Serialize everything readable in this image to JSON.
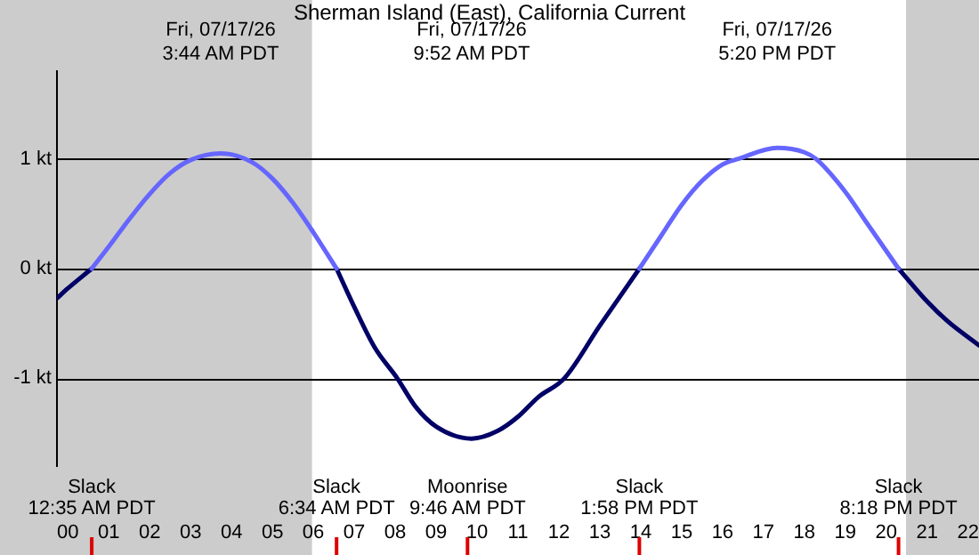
{
  "chart_data": {
    "type": "line",
    "title": "Sherman Island (East), California Current",
    "x": [
      "--07-16T23:44",
      "--07-17T00:00",
      "--07-17T00:35",
      "--07-17T01:00",
      "--07-17T01:30",
      "--07-17T02:00",
      "--07-17T02:30",
      "--07-17T03:00",
      "--07-17T03:44",
      "--07-17T04:30",
      "--07-17T05:00",
      "--07-17T05:30",
      "--07-17T06:00",
      "--07-17T06:34",
      "--07-17T07:00",
      "--07-17T07:30",
      "--07-17T08:03",
      "--07-17T08:30",
      "--07-17T09:00",
      "--07-17T09:52",
      "--07-17T10:30",
      "--07-17T11:00",
      "--07-17T11:30",
      "--07-17T12:08",
      "--07-17T13:00",
      "--07-17T13:58",
      "--07-17T14:30",
      "--07-17T15:00",
      "--07-17T15:30",
      "--07-17T16:00",
      "--07-17T16:23",
      "--07-17T17:20",
      "--07-17T18:00",
      "--07-17T18:17",
      "--07-17T19:00",
      "--07-17T19:30",
      "--07-17T20:18",
      "--07-17T21:00",
      "--07-17T21:30",
      "--07-17T22:16"
    ],
    "series": [
      {
        "color": "#6666ff",
        "values": [
          null,
          null,
          0,
          0.2,
          0.45,
          0.68,
          0.87,
          0.99,
          1.05,
          0.97,
          0.82,
          0.6,
          0.33,
          0,
          null,
          null,
          null,
          null,
          null,
          null,
          null,
          null,
          null,
          null,
          null,
          0,
          0.3,
          0.58,
          0.8,
          0.95,
          1.0,
          1.1,
          1.06,
          1.0,
          0.7,
          0.43,
          0,
          null,
          null,
          null
        ]
      },
      {
        "color": "#000066",
        "values": [
          -0.27,
          -0.18,
          0,
          null,
          null,
          null,
          null,
          null,
          null,
          null,
          null,
          null,
          null,
          0,
          -0.35,
          -0.72,
          -1.0,
          -1.26,
          -1.44,
          -1.55,
          -1.48,
          -1.35,
          -1.17,
          -1.0,
          -0.52,
          0,
          null,
          null,
          null,
          null,
          null,
          null,
          null,
          null,
          null,
          null,
          0,
          -0.3,
          -0.48,
          -0.7
        ]
      }
    ],
    "xlim": [
      "--07-16T23:44",
      "--07-17T22:16"
    ],
    "xticks": [
      {
        "value": "--07-17T00:00",
        "label": "00"
      },
      {
        "value": "--07-17T01:00",
        "label": "01"
      },
      {
        "value": "--07-17T02:00",
        "label": "02"
      },
      {
        "value": "--07-17T03:00",
        "label": "03"
      },
      {
        "value": "--07-17T04:00",
        "label": "04"
      },
      {
        "value": "--07-17T05:00",
        "label": "05"
      },
      {
        "value": "--07-17T06:00",
        "label": "06"
      },
      {
        "value": "--07-17T07:00",
        "label": "07"
      },
      {
        "value": "--07-17T08:00",
        "label": "08"
      },
      {
        "value": "--07-17T09:00",
        "label": "09"
      },
      {
        "value": "--07-17T10:00",
        "label": "10"
      },
      {
        "value": "--07-17T11:00",
        "label": "11"
      },
      {
        "value": "--07-17T12:00",
        "label": "12"
      },
      {
        "value": "--07-17T13:00",
        "label": "13"
      },
      {
        "value": "--07-17T14:00",
        "label": "14"
      },
      {
        "value": "--07-17T15:00",
        "label": "15"
      },
      {
        "value": "--07-17T16:00",
        "label": "16"
      },
      {
        "value": "--07-17T17:00",
        "label": "17"
      },
      {
        "value": "--07-17T18:00",
        "label": "18"
      },
      {
        "value": "--07-17T19:00",
        "label": "19"
      },
      {
        "value": "--07-17T20:00",
        "label": "20"
      },
      {
        "value": "--07-17T21:00",
        "label": "21"
      },
      {
        "value": "--07-17T22:00",
        "label": "22"
      }
    ],
    "x2lim": [
      "--07-16T23:44",
      "--07-17T22:16"
    ],
    "x2ticks": [
      {
        "value": "--07-17T03:44",
        "label": "Fri, 07/17/26\n3:44 AM PDT"
      },
      {
        "value": "--07-17T09:52",
        "label": "Fri, 07/17/26\n9:52 AM PDT"
      },
      {
        "value": "--07-17T17:20",
        "label": "Fri, 07/17/26\n5:20 PM PDT"
      }
    ],
    "ylim": [
      -1.8,
      1.8
    ],
    "yticks": [
      {
        "value": -1,
        "label": "-1 kt"
      },
      {
        "value": 0,
        "label": "0 kt"
      },
      {
        "value": 1,
        "label": "1 kt"
      }
    ],
    "grid": "y",
    "legend": false,
    "marker": "none",
    "line_style": "solid",
    "bands": [
      {
        "axis": "x",
        "from": "--07-16T23:44",
        "to": "--07-17T05:58",
        "color": "#cccccc"
      },
      {
        "axis": "x",
        "from": "--07-17T20:29",
        "to": "--07-17T22:16",
        "color": "#cccccc"
      }
    ],
    "annotations": [
      {
        "text": "Slack\n12:35 AM PDT",
        "x": "--07-17T00:35"
      },
      {
        "text": "Slack\n6:34 AM PDT",
        "x": "--07-17T06:34"
      },
      {
        "text": "Moonrise\n9:46 AM PDT",
        "x": "--07-17T09:46"
      },
      {
        "text": "Slack\n1:58 PM PDT",
        "x": "--07-17T13:58"
      },
      {
        "text": "Slack\n8:18 PM PDT",
        "x": "--07-17T20:18"
      }
    ]
  }
}
